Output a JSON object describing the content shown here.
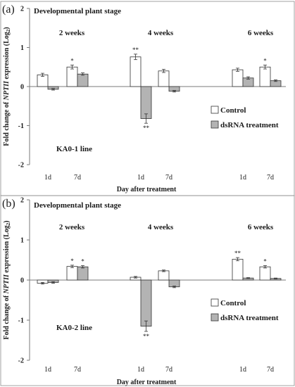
{
  "chart_data": [
    {
      "type": "bar",
      "panel_label": "(a)",
      "title": "Developmental plant stage",
      "ylabel_pre": "Fold change of ",
      "ylabel_gene": "NPTII",
      "ylabel_post": " expression (Log",
      "ylabel_sub": "2",
      "ylabel_close": ")",
      "xlabel": "Day after treatment",
      "ylim": [
        -2,
        2
      ],
      "yticks": [
        "2",
        "1",
        "0",
        "-1",
        "-2"
      ],
      "groups": [
        "2 weeks",
        "4 weeks",
        "6 weeks"
      ],
      "categories": [
        "1d",
        "7d",
        "1d",
        "7d",
        "1d",
        "7d"
      ],
      "line_label": "KA0-1 line",
      "legend": [
        "Control",
        "dsRNA treatment"
      ],
      "legend_position": "right",
      "series": [
        {
          "name": "Control",
          "color": "#ffffff",
          "values": [
            0.3,
            0.5,
            0.76,
            0.4,
            0.43,
            0.5
          ],
          "errors": [
            0.04,
            0.05,
            0.07,
            0.04,
            0.04,
            0.05
          ],
          "sig": [
            "",
            "*",
            "**",
            "",
            "",
            "*"
          ]
        },
        {
          "name": "dsRNA treatment",
          "color": "#b3b3b3",
          "values": [
            -0.07,
            0.32,
            -0.82,
            -0.12,
            0.22,
            0.15
          ],
          "errors": [
            0.02,
            0.03,
            0.12,
            0.02,
            0.03,
            0.02
          ],
          "sig": [
            "",
            "",
            "**",
            "",
            "",
            ""
          ]
        }
      ]
    },
    {
      "type": "bar",
      "panel_label": "(b)",
      "title": "Developmental plant stage",
      "ylabel_pre": "Fold change of ",
      "ylabel_gene": "NPTII",
      "ylabel_post": " expression (Log",
      "ylabel_sub": "2",
      "ylabel_close": ")",
      "xlabel": "Day after treatment",
      "ylim": [
        -2,
        2
      ],
      "yticks": [
        "2",
        "1",
        "0",
        "-1",
        "-2"
      ],
      "groups": [
        "2 weeks",
        "4 weeks",
        "6 weeks"
      ],
      "categories": [
        "1d",
        "7d",
        "1d",
        "7d",
        "1d",
        "7d"
      ],
      "line_label": "KA0-2 line",
      "legend": [
        "Control",
        "dsRNA treatment"
      ],
      "legend_position": "right",
      "series": [
        {
          "name": "Control",
          "color": "#ffffff",
          "values": [
            -0.08,
            0.34,
            0.07,
            0.23,
            0.52,
            0.33
          ],
          "errors": [
            0.02,
            0.03,
            0.02,
            0.02,
            0.04,
            0.03
          ],
          "sig": [
            "",
            "*",
            "",
            "",
            "**",
            "*"
          ]
        },
        {
          "name": "dsRNA treatment",
          "color": "#b3b3b3",
          "values": [
            -0.06,
            0.33,
            -1.15,
            -0.17,
            0.05,
            0.04
          ],
          "errors": [
            0.02,
            0.03,
            0.13,
            0.02,
            0.01,
            0.01
          ],
          "sig": [
            "",
            "*",
            "**",
            "",
            "",
            ""
          ]
        }
      ]
    }
  ]
}
